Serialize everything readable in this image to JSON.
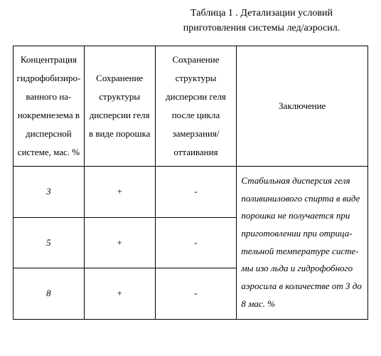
{
  "caption_line1": "Таблица 1 . Детализации условий",
  "caption_line2": "приготовления системы лед/аэросил.",
  "headers": {
    "c1": "Концентра­ция гидро­фобизиро­ванного на­нокремнезе­ма в дис­персной сис­теме, мас. %",
    "c2": "Сохранение структуры дисперсии геля в виде порошка",
    "c3": "Сохранение структуры дисперсии геля после цикла замер­за­ния/оттаивани­я",
    "c4": "Заключение"
  },
  "rows": [
    {
      "conc": "3",
      "col2": "+",
      "col3": "-"
    },
    {
      "conc": "5",
      "col2": "+",
      "col3": "-"
    },
    {
      "conc": "8",
      "col2": "+",
      "col3": "-"
    }
  ],
  "note": "Стабильная дисперсия геля поливинилового спирта в виде порошка  не получается при приготовлении  при отрица­тельной температуре систе­мы изо льда и гидрофобного аэросила  в количестве от 3 до 8 мас. %"
}
